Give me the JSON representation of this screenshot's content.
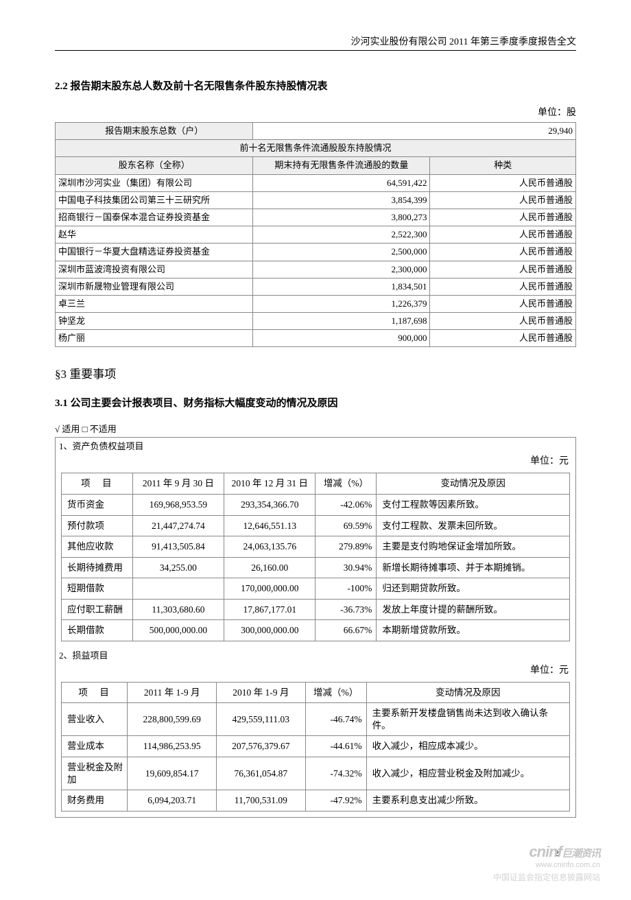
{
  "header": "沙河实业股份有限公司 2011 年第三季度季度报告全文",
  "s22_title": "2.2 报告期末股东总人数及前十名无限售条件股东持股情况表",
  "unit_gu": "单位：股",
  "t1": {
    "h_total": "报告期末股东总数（户）",
    "total_val": "29,940",
    "h_top10": "前十名无限售条件流通股股东持股情况",
    "h_name": "股东名称（全称）",
    "h_shares": "期末持有无限售条件流通股的数量",
    "h_type": "种类",
    "rows": [
      {
        "name": "深圳市沙河实业（集团）有限公司",
        "shares": "64,591,422",
        "type": "人民币普通股"
      },
      {
        "name": "中国电子科技集团公司第三十三研究所",
        "shares": "3,854,399",
        "type": "人民币普通股"
      },
      {
        "name": "招商银行－国泰保本混合证券投资基金",
        "shares": "3,800,273",
        "type": "人民币普通股"
      },
      {
        "name": "赵华",
        "shares": "2,522,300",
        "type": "人民币普通股"
      },
      {
        "name": "中国银行－华夏大盘精选证券投资基金",
        "shares": "2,500,000",
        "type": "人民币普通股"
      },
      {
        "name": "深圳市蓝波湾投资有限公司",
        "shares": "2,300,000",
        "type": "人民币普通股"
      },
      {
        "name": "深圳市新晟物业管理有限公司",
        "shares": "1,834,501",
        "type": "人民币普通股"
      },
      {
        "name": "卓三兰",
        "shares": "1,226,379",
        "type": "人民币普通股"
      },
      {
        "name": "钟坚龙",
        "shares": "1,187,698",
        "type": "人民币普通股"
      },
      {
        "name": "杨广丽",
        "shares": "900,000",
        "type": "人民币普通股"
      }
    ]
  },
  "s3_title": "§3  重要事项",
  "s31_title": "3.1 公司主要会计报表项目、财务指标大幅度变动的情况及原因",
  "checkbox": "√ 适用 □ 不适用",
  "box1_title": "1、资产负债权益项目",
  "unit_yuan": "单位：元",
  "t2": {
    "h_item": "项　目",
    "h_d1": "2011 年 9 月 30 日",
    "h_d2": "2010 年 12 月 31 日",
    "h_chg": "增减（%）",
    "h_reason": "变动情况及原因",
    "rows": [
      {
        "item": "货币资金",
        "d1": "169,968,953.59",
        "d2": "293,354,366.70",
        "chg": "-42.06%",
        "reason": "支付工程款等因素所致。"
      },
      {
        "item": "预付款项",
        "d1": "21,447,274.74",
        "d2": "12,646,551.13",
        "chg": "69.59%",
        "reason": "支付工程款、发票未回所致。"
      },
      {
        "item": "其他应收款",
        "d1": "91,413,505.84",
        "d2": "24,063,135.76",
        "chg": "279.89%",
        "reason": "主要是支付购地保证金增加所致。"
      },
      {
        "item": "长期待摊费用",
        "d1": "34,255.00",
        "d2": "26,160.00",
        "chg": "30.94%",
        "reason": "新增长期待摊事项、并于本期摊销。"
      },
      {
        "item": "短期借款",
        "d1": "",
        "d2": "170,000,000.00",
        "chg": "-100%",
        "reason": "归还到期贷款所致。"
      },
      {
        "item": "应付职工薪酬",
        "d1": "11,303,680.60",
        "d2": "17,867,177.01",
        "chg": "-36.73%",
        "reason": "发放上年度计提的薪酬所致。"
      },
      {
        "item": "长期借款",
        "d1": "500,000,000.00",
        "d2": "300,000,000.00",
        "chg": "66.67%",
        "reason": "本期新增贷款所致。"
      }
    ]
  },
  "box2_title": "2、损益项目",
  "t3": {
    "h_item": "项　目",
    "h_d1": "2011 年 1-9 月",
    "h_d2": "2010 年 1-9 月",
    "h_chg": "增减（%）",
    "h_reason": "变动情况及原因",
    "rows": [
      {
        "item": "营业收入",
        "d1": "228,800,599.69",
        "d2": "429,559,111.03",
        "chg": "-46.74%",
        "reason": "主要系新开发楼盘销售尚未达到收入确认条件。"
      },
      {
        "item": "营业成本",
        "d1": "114,986,253.95",
        "d2": "207,576,379.67",
        "chg": "-44.61%",
        "reason": "收入减少，相应成本减少。"
      },
      {
        "item": "营业税金及附加",
        "d1": "19,609,854.17",
        "d2": "76,361,054.87",
        "chg": "-74.32%",
        "reason": "收入减少，相应营业税金及附加减少。"
      },
      {
        "item": "财务费用",
        "d1": "6,094,203.71",
        "d2": "11,700,531.09",
        "chg": "-47.92%",
        "reason": "主要系利息支出减少所致。"
      }
    ]
  },
  "pagenum": "2",
  "wm": {
    "logo": "cninf",
    "cn": "巨潮资讯",
    "url": "www.cninfo.com.cn",
    "bottom": "中国证监会指定信息披露网站"
  }
}
